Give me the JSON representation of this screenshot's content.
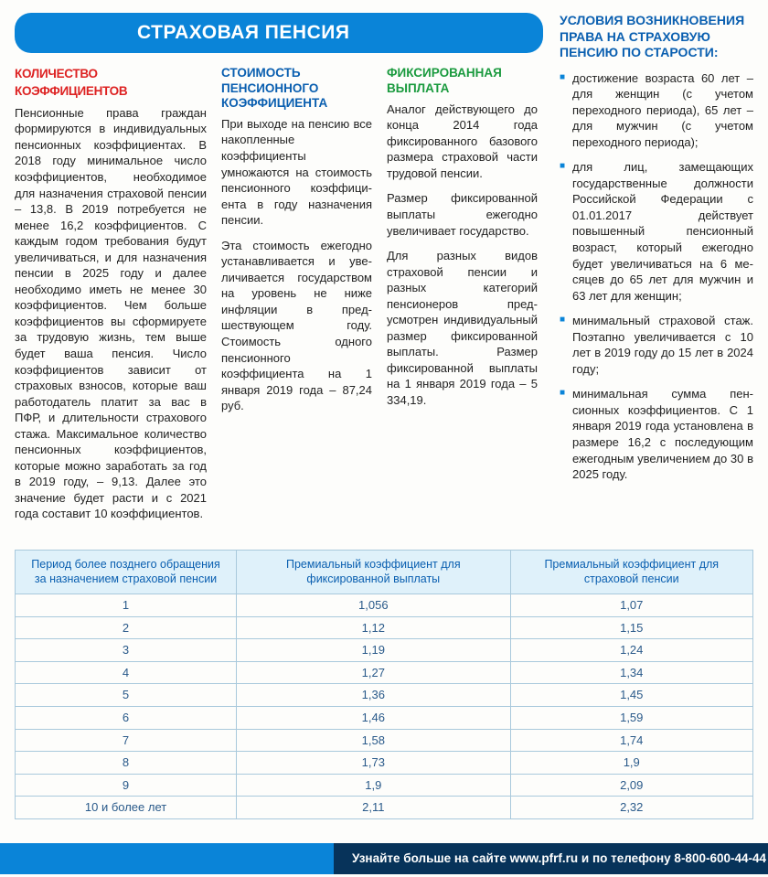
{
  "banner": "СТРАХОВАЯ ПЕНСИЯ",
  "colA": {
    "heading": "КОЛИЧЕСТВО КОЭФФИЦИЕНТОВ",
    "p1": "Пенсионные права граждан форми­руются в индивидуальных пенси­онных коэффициентах. В 2018 году минимальное число коэффициен­тов, необходимое для назначения страховой пенсии – 13,8. В 2019 потребуется не менее 16,2 коэф­фициентов. С каждым годом требо­вания будут увеличиваться, и для назначения пенсии в 2025 году и далее необходимо иметь не менее 30 коэффициентов. Чем больше коэффициентов вы сформируете за трудовую жизнь, тем выше будет ваша пенсия. Число коэффициен­тов зависит от страховых взносов, которые ваш работодатель пла­тит за вас в ПФР, и длительности страхового стажа. Максимальное количество пенсионных коэффи­циентов, которые можно заработать за год в 2019 году, – 9,13. Далее это значение будет расти и с 2021 года составит 10 коэффициентов."
  },
  "colB": {
    "heading": "СТОИМОСТЬ ПЕНСИОННОГО КОЭФФИЦИЕНТА",
    "p1": "При выходе на пен­сию все накоплен­ные коэффициенты умножаются на стоимость пенси­онного коэффици­ента в году назна­чения пенсии.",
    "p2": "Эта стоимость ежегодно устанав­ливается и уве­личивается го­сударством на уровень не ниже инфляции в пред­шествующем году. Стоимость одно­го пенсионного коэффициента на 1 января 2019 го­да – 87,24 руб."
  },
  "colC": {
    "heading": "ФИКСИРОВАННАЯ ВЫПЛАТА",
    "p1": "Аналог действующе­го до конца 2014 года фиксированного базового размера страховой части трудовой пенсии.",
    "p2": "Размер фиксирован­ной выплаты еже­годно увеличивает государство.",
    "p3": "Для разных видов страховой пенсии и разных категорий пенсионеров пред­усмотрен индиви­дуальный размер фиксированной выплаты. Размер фиксированной выплаты на 1 января 2019 года – 5 334,19."
  },
  "side": {
    "heading": "УСЛОВИЯ ВОЗНИКНОВЕНИЯ ПРАВА НА СТРАХОВУЮ ПЕНСИЮ ПО СТАРОСТИ:",
    "items": [
      "достижение возраста 60 лет – для женщин (с уче­том переходного периода), 65 лет – для мужчин (с уче­том переходного периода);",
      "для лиц, замещающих государственные должно­сти Российской Федера­ции с 01.01.2017 действует повышенный пенсионный возраст, который ежегодно будет увеличиваться на 6 ме­сяцев до 65 лет для мужчин и 63 лет для женщин;",
      "минимальный страховой стаж. Поэтапно увеличива­ется с 10 лет в 2019 году до 15 лет в 2024 году;",
      "минимальная сумма пен­сионных коэффициентов. С 1 января 2019 года установ­лена в размере 16,2 с после­дующим ежегодным увели­чением до 30 в 2025 году."
    ]
  },
  "table": {
    "headers": [
      "Период более позднего обращения за назначением страховой пенсии",
      "Премиальный коэффициент для фиксированной выплаты",
      "Премиальный коэффициент для страховой пенсии"
    ],
    "rows": [
      [
        "1",
        "1,056",
        "1,07"
      ],
      [
        "2",
        "1,12",
        "1,15"
      ],
      [
        "3",
        "1,19",
        "1,24"
      ],
      [
        "4",
        "1,27",
        "1,34"
      ],
      [
        "5",
        "1,36",
        "1,45"
      ],
      [
        "6",
        "1,46",
        "1,59"
      ],
      [
        "7",
        "1,58",
        "1,74"
      ],
      [
        "8",
        "1,73",
        "1,9"
      ],
      [
        "9",
        "1,9",
        "2,09"
      ],
      [
        "10 и более лет",
        "2,11",
        "2,32"
      ]
    ],
    "header_bg": "#dff1fa",
    "header_color": "#0a5fb0",
    "border_color": "#a9c9dc",
    "cell_color": "#2a5a8a"
  },
  "footer": "Узнайте больше на сайте www.pfrf.ru и по телефону 8-800-600-44-44",
  "colors": {
    "banner_bg": "#0a84d8",
    "red": "#d22",
    "blue": "#0a5fb0",
    "green": "#1a9a3e",
    "footer_dark": "#07335a"
  }
}
